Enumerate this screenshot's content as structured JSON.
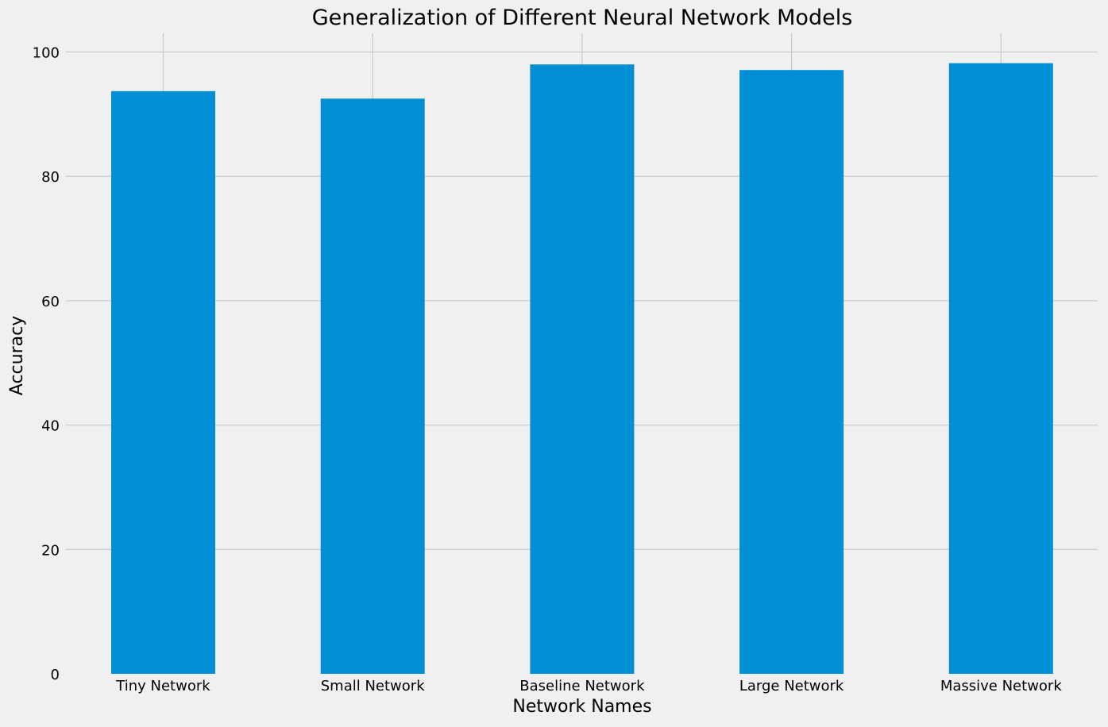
{
  "chart_data": {
    "type": "bar",
    "title": "Generalization of Different Neural Network Models",
    "xlabel": "Network Names",
    "ylabel": "Accuracy",
    "categories": [
      "Tiny Network",
      "Small Network",
      "Baseline Network",
      "Large Network",
      "Massive Network"
    ],
    "values": [
      93.7,
      92.5,
      98.0,
      97.1,
      98.2
    ],
    "ylim": [
      0,
      103
    ],
    "yticks": [
      0,
      20,
      40,
      60,
      80,
      100
    ],
    "grid": true,
    "bar_color": "#008fd5",
    "background_color": "#f0f0f0",
    "grid_color": "#cbcbcb"
  }
}
